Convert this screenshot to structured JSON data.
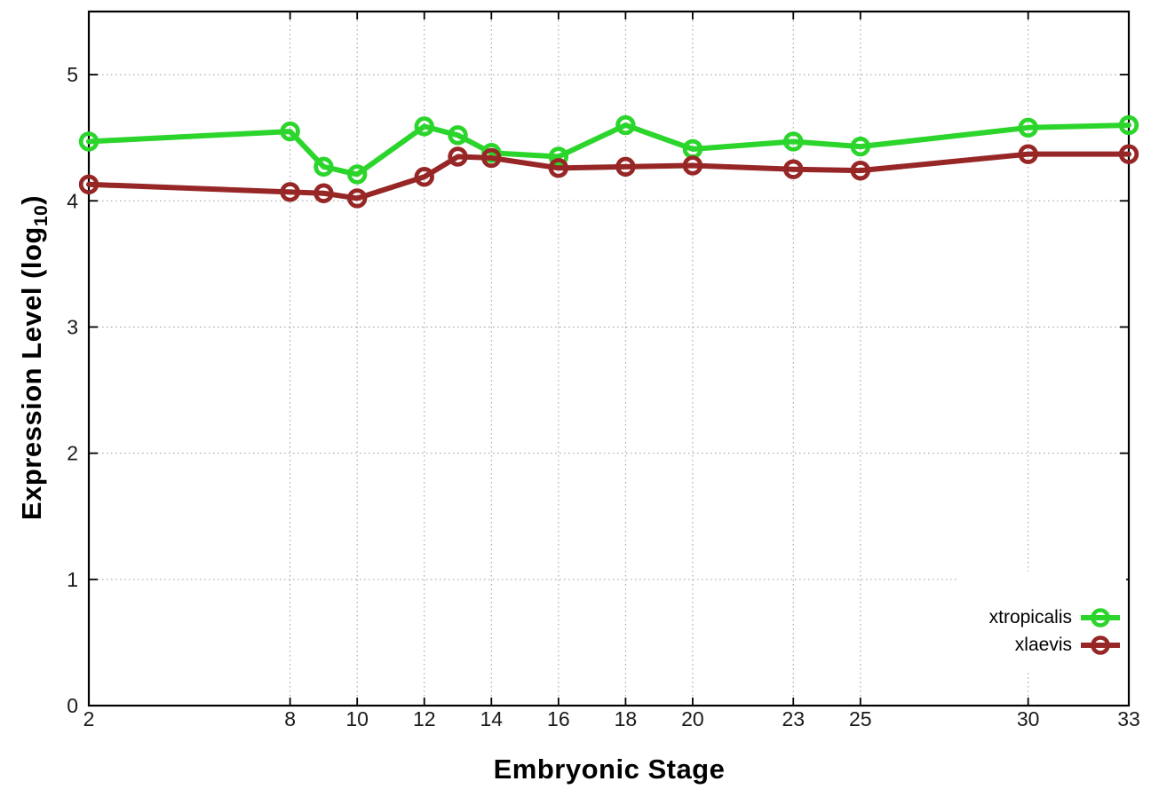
{
  "chart_data": {
    "type": "line",
    "title": "",
    "xlabel": "Embryonic Stage",
    "ylabel": "Expression Level (log10)",
    "ylabel_parts": {
      "pre": "Expression Level (log",
      "sub": "10",
      "post": ")"
    },
    "x": [
      2,
      8,
      9,
      10,
      12,
      13,
      14,
      16,
      18,
      20,
      23,
      25,
      30,
      33
    ],
    "xticks": [
      2,
      8,
      10,
      12,
      14,
      16,
      18,
      20,
      23,
      25,
      30,
      33
    ],
    "yticks": [
      0,
      1,
      2,
      3,
      4,
      5
    ],
    "xlim": [
      2,
      33
    ],
    "ylim": [
      0,
      5.5
    ],
    "grid": true,
    "legend_position": "inside-bottom-right",
    "series": [
      {
        "name": "xtropicalis",
        "color": "#2bd52b",
        "marker": "open-circle",
        "values": [
          4.47,
          4.55,
          4.27,
          4.21,
          4.59,
          4.52,
          4.38,
          4.35,
          4.6,
          4.41,
          4.47,
          4.43,
          4.58,
          4.6
        ]
      },
      {
        "name": "xlaevis",
        "color": "#972626",
        "marker": "open-circle",
        "values": [
          4.13,
          4.07,
          4.06,
          4.02,
          4.19,
          4.35,
          4.34,
          4.26,
          4.27,
          4.28,
          4.25,
          4.24,
          4.37,
          4.37
        ]
      }
    ]
  },
  "colors": {
    "background": "#ffffff",
    "axis": "#000000",
    "tick_label": "#1a1a1a",
    "grid": "#999999"
  }
}
